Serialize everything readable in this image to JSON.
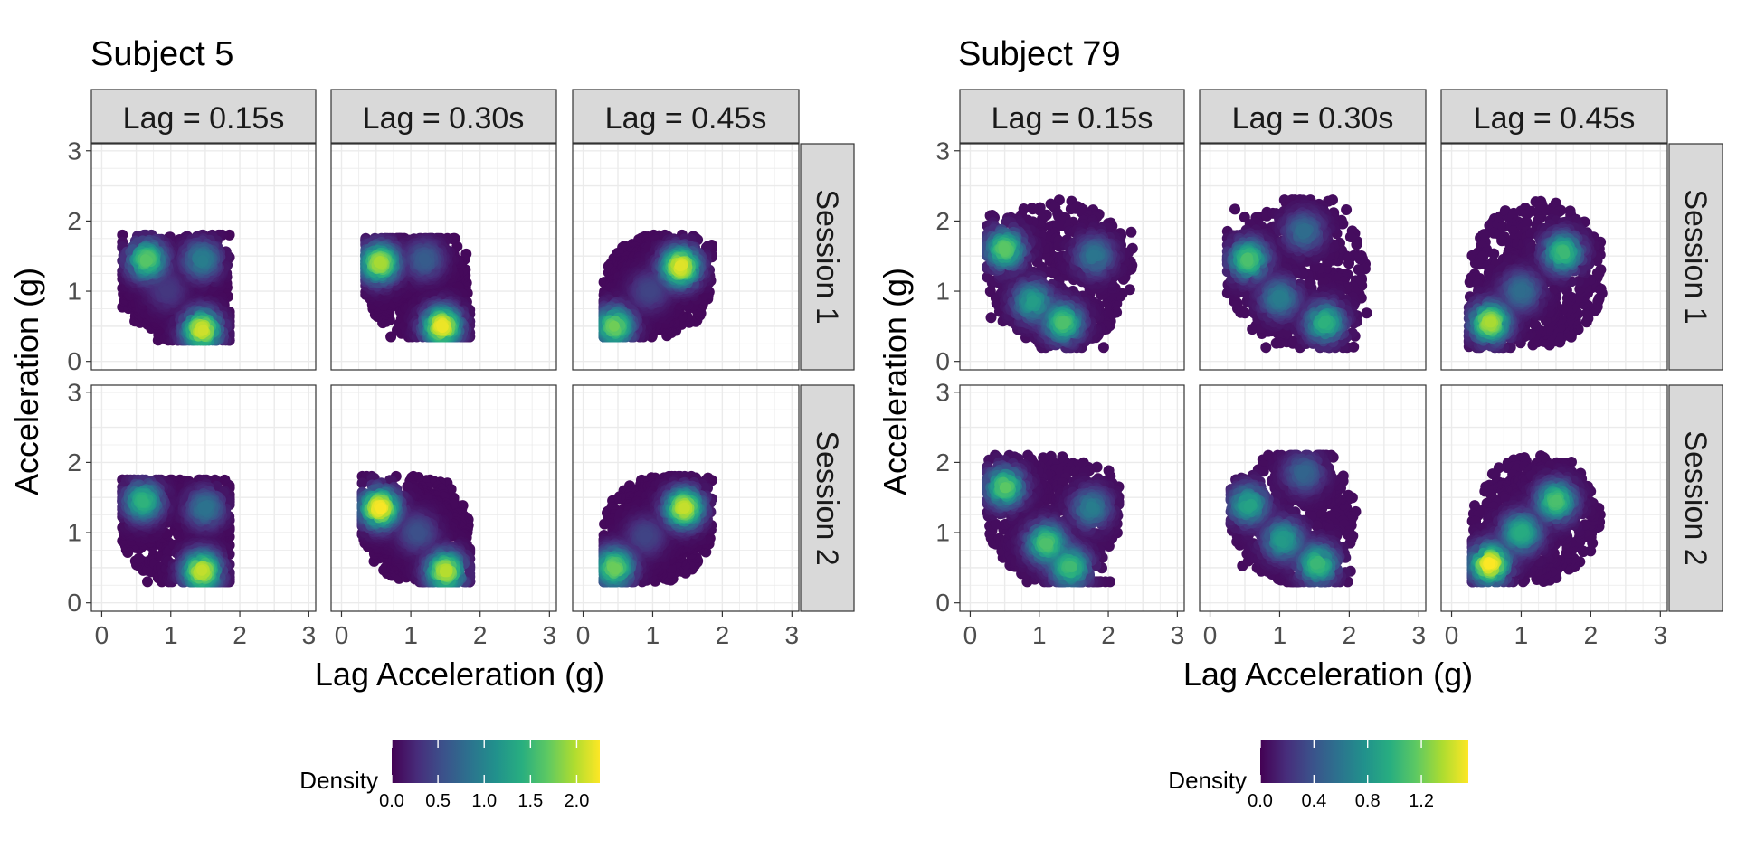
{
  "chart_data": [
    {
      "type": "scatter",
      "title": "Subject 5",
      "xlabel": "Lag Acceleration (g)",
      "ylabel": "Acceleration (g)",
      "xlim": [
        -0.15,
        3.1
      ],
      "ylim": [
        -0.12,
        3.1
      ],
      "xticks": [
        0,
        1,
        2,
        3
      ],
      "yticks": [
        0,
        1,
        2,
        3
      ],
      "xtick_labels": [
        "0",
        "1",
        "2",
        "3"
      ],
      "ytick_labels": [
        "0",
        "1",
        "2",
        "3"
      ],
      "grid": true,
      "facet_columns": [
        "Lag = 0.15s",
        "Lag = 0.30s",
        "Lag = 0.45s"
      ],
      "facet_rows": [
        "Session 1",
        "Session 2"
      ],
      "legend": {
        "title": "Density",
        "position": "bottom",
        "range": [
          0,
          2.25
        ],
        "ticks": [
          0,
          0.5,
          1,
          1.5,
          2
        ],
        "tick_labels": [
          "0.0",
          "0.5",
          "1.0",
          "1.5",
          "2.0"
        ]
      },
      "colormap": "viridis",
      "panels": [
        {
          "column": "Lag = 0.15s",
          "row": "Session 1",
          "x_range": [
            0.3,
            1.85
          ],
          "y_range": [
            0.3,
            1.8
          ],
          "clusters": [
            {
              "x": 0.65,
              "y": 1.45,
              "density": 1.6
            },
            {
              "x": 1.45,
              "y": 0.45,
              "density": 2.05
            },
            {
              "x": 1.45,
              "y": 1.45,
              "density": 0.9
            },
            {
              "x": 0.95,
              "y": 1.0,
              "density": 0.3
            }
          ]
        },
        {
          "column": "Lag = 0.30s",
          "row": "Session 1",
          "x_range": [
            0.35,
            1.85
          ],
          "y_range": [
            0.35,
            1.75
          ],
          "clusters": [
            {
              "x": 0.55,
              "y": 1.4,
              "density": 1.9
            },
            {
              "x": 1.45,
              "y": 0.5,
              "density": 2.15
            },
            {
              "x": 1.2,
              "y": 1.45,
              "density": 0.6
            }
          ]
        },
        {
          "column": "Lag = 0.45s",
          "row": "Session 1",
          "x_range": [
            0.3,
            1.85
          ],
          "y_range": [
            0.35,
            1.8
          ],
          "clusters": [
            {
              "x": 0.45,
              "y": 0.5,
              "density": 1.7
            },
            {
              "x": 1.4,
              "y": 1.35,
              "density": 2.1
            },
            {
              "x": 0.95,
              "y": 1.0,
              "density": 0.4
            }
          ]
        },
        {
          "column": "Lag = 0.15s",
          "row": "Session 2",
          "x_range": [
            0.3,
            1.85
          ],
          "y_range": [
            0.3,
            1.75
          ],
          "clusters": [
            {
              "x": 0.6,
              "y": 1.45,
              "density": 1.4
            },
            {
              "x": 1.45,
              "y": 0.45,
              "density": 2.0
            },
            {
              "x": 1.5,
              "y": 1.35,
              "density": 0.8
            }
          ]
        },
        {
          "column": "Lag = 0.30s",
          "row": "Session 2",
          "x_range": [
            0.3,
            1.85
          ],
          "y_range": [
            0.3,
            1.8
          ],
          "clusters": [
            {
              "x": 0.55,
              "y": 1.35,
              "density": 2.2
            },
            {
              "x": 1.5,
              "y": 0.45,
              "density": 1.95
            },
            {
              "x": 1.1,
              "y": 1.0,
              "density": 0.5
            }
          ]
        },
        {
          "column": "Lag = 0.45s",
          "row": "Session 2",
          "x_range": [
            0.3,
            1.85
          ],
          "y_range": [
            0.3,
            1.8
          ],
          "clusters": [
            {
              "x": 0.45,
              "y": 0.5,
              "density": 1.7
            },
            {
              "x": 1.45,
              "y": 1.35,
              "density": 2.0
            },
            {
              "x": 0.9,
              "y": 0.95,
              "density": 0.4
            }
          ]
        }
      ]
    },
    {
      "type": "scatter",
      "title": "Subject 79",
      "xlabel": "Lag Acceleration (g)",
      "ylabel": "Acceleration (g)",
      "xlim": [
        -0.15,
        3.1
      ],
      "ylim": [
        -0.12,
        3.1
      ],
      "xticks": [
        0,
        1,
        2,
        3
      ],
      "yticks": [
        0,
        1,
        2,
        3
      ],
      "xtick_labels": [
        "0",
        "1",
        "2",
        "3"
      ],
      "ytick_labels": [
        "0",
        "1",
        "2",
        "3"
      ],
      "grid": true,
      "facet_columns": [
        "Lag = 0.15s",
        "Lag = 0.30s",
        "Lag = 0.45s"
      ],
      "facet_rows": [
        "Session 1",
        "Session 2"
      ],
      "legend": {
        "title": "Density",
        "position": "bottom",
        "range": [
          0,
          1.55
        ],
        "ticks": [
          0,
          0.4,
          0.8,
          1.2
        ],
        "tick_labels": [
          "0.0",
          "0.4",
          "0.8",
          "1.2"
        ]
      },
      "colormap": "viridis",
      "panels": [
        {
          "column": "Lag = 0.15s",
          "row": "Session 1",
          "x_range": [
            0.25,
            2.35
          ],
          "y_range": [
            0.2,
            2.3
          ],
          "clusters": [
            {
              "x": 0.5,
              "y": 1.6,
              "density": 1.1
            },
            {
              "x": 1.35,
              "y": 0.55,
              "density": 1.05
            },
            {
              "x": 1.8,
              "y": 1.5,
              "density": 0.55
            },
            {
              "x": 0.9,
              "y": 0.85,
              "density": 0.8
            }
          ]
        },
        {
          "column": "Lag = 0.30s",
          "row": "Session 1",
          "x_range": [
            0.25,
            2.25
          ],
          "y_range": [
            0.2,
            2.3
          ],
          "clusters": [
            {
              "x": 0.55,
              "y": 1.45,
              "density": 1.05
            },
            {
              "x": 1.65,
              "y": 0.55,
              "density": 0.95
            },
            {
              "x": 1.35,
              "y": 1.85,
              "density": 0.5
            },
            {
              "x": 1.0,
              "y": 0.9,
              "density": 0.6
            }
          ]
        },
        {
          "column": "Lag = 0.45s",
          "row": "Session 1",
          "x_range": [
            0.25,
            2.2
          ],
          "y_range": [
            0.2,
            2.3
          ],
          "clusters": [
            {
              "x": 0.55,
              "y": 0.55,
              "density": 1.3
            },
            {
              "x": 1.6,
              "y": 1.55,
              "density": 1.0
            },
            {
              "x": 1.0,
              "y": 1.0,
              "density": 0.5
            }
          ]
        },
        {
          "column": "Lag = 0.15s",
          "row": "Session 2",
          "x_range": [
            0.25,
            2.15
          ],
          "y_range": [
            0.3,
            2.1
          ],
          "clusters": [
            {
              "x": 0.5,
              "y": 1.65,
              "density": 1.1
            },
            {
              "x": 1.1,
              "y": 0.85,
              "density": 1.05
            },
            {
              "x": 1.45,
              "y": 0.5,
              "density": 1.0
            },
            {
              "x": 1.75,
              "y": 1.35,
              "density": 0.6
            }
          ]
        },
        {
          "column": "Lag = 0.30s",
          "row": "Session 2",
          "x_range": [
            0.3,
            2.1
          ],
          "y_range": [
            0.3,
            2.1
          ],
          "clusters": [
            {
              "x": 0.55,
              "y": 1.4,
              "density": 0.85
            },
            {
              "x": 1.55,
              "y": 0.55,
              "density": 1.0
            },
            {
              "x": 1.05,
              "y": 0.9,
              "density": 0.8
            },
            {
              "x": 1.35,
              "y": 1.85,
              "density": 0.45
            }
          ]
        },
        {
          "column": "Lag = 0.45s",
          "row": "Session 2",
          "x_range": [
            0.3,
            2.15
          ],
          "y_range": [
            0.3,
            2.1
          ],
          "clusters": [
            {
              "x": 0.55,
              "y": 0.55,
              "density": 1.5
            },
            {
              "x": 1.5,
              "y": 1.45,
              "density": 1.05
            },
            {
              "x": 1.0,
              "y": 1.0,
              "density": 0.9
            }
          ]
        }
      ]
    }
  ]
}
